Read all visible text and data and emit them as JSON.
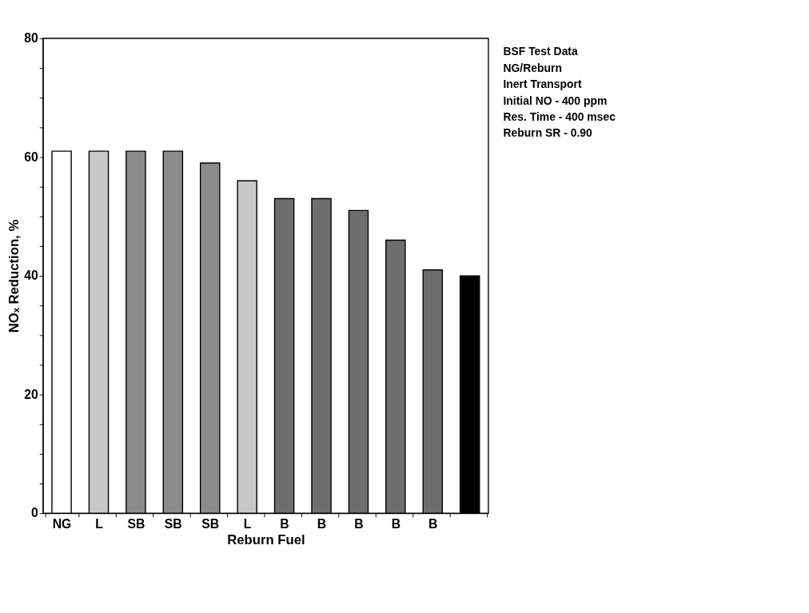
{
  "chart_data": {
    "type": "bar",
    "categories": [
      "NG",
      "L",
      "SB",
      "SB",
      "SB",
      "L",
      "B",
      "B",
      "B",
      "B",
      "B",
      null
    ],
    "values": [
      61,
      61,
      61,
      61,
      59,
      56,
      53,
      53,
      51,
      46,
      41,
      40
    ],
    "colors": [
      "#ffffff",
      "#c8c8c8",
      "#8c8c8c",
      "#8c8c8c",
      "#8c8c8c",
      "#c8c8c8",
      "#6e6e6e",
      "#6e6e6e",
      "#6e6e6e",
      "#6e6e6e",
      "#6e6e6e",
      "#000000"
    ],
    "xlabel": "Reburn Fuel",
    "ylabel": "NOₓ Reduction, %",
    "ylim": [
      0,
      80
    ],
    "yticks": [
      0,
      {
        "value": 5,
        "label": null
      },
      {
        "value": 10,
        "label": null
      },
      {
        "value": 15,
        "label": null
      },
      20,
      {
        "value": 25,
        "label": null
      },
      {
        "value": 30,
        "label": null
      },
      {
        "value": 35,
        "label": null
      },
      40,
      {
        "value": 45,
        "label": null
      },
      {
        "value": 50,
        "label": null
      },
      {
        "value": 55,
        "label": null
      },
      60,
      {
        "value": 65,
        "label": null
      },
      {
        "value": 70,
        "label": null
      },
      {
        "value": 75,
        "label": null
      },
      80
    ],
    "annotations": [
      "BSF Test Data",
      "NG/Reburn",
      "Inert Transport",
      "Initial NO - 400 ppm",
      "Res. Time - 400 msec",
      "Reburn SR - 0.90"
    ]
  }
}
